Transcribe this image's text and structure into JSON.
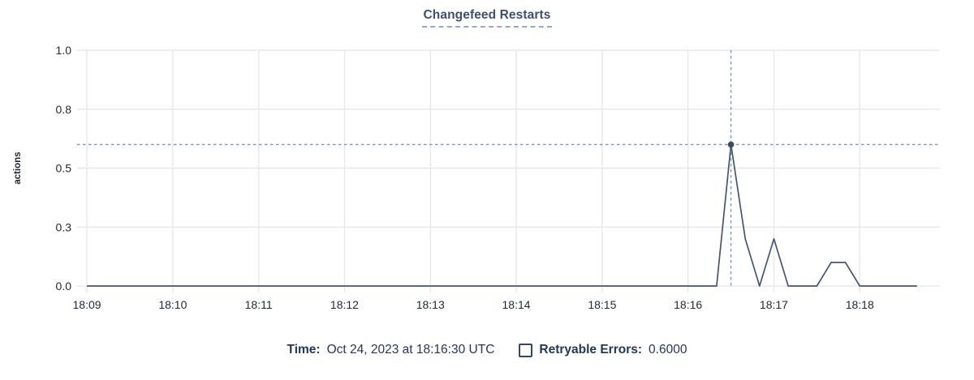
{
  "header": {
    "title": "Changefeed Restarts"
  },
  "footer": {
    "time_label": "Time:",
    "time_value": "Oct 24, 2023 at 18:16:30 UTC",
    "legend_label": "Retryable Errors:",
    "legend_value": "0.6000",
    "legend_checked": false
  },
  "chart_data": {
    "type": "line",
    "title": "Changefeed Restarts",
    "xlabel": "",
    "ylabel": "actions",
    "ylim": [
      0,
      1
    ],
    "grid": true,
    "legend_position": "bottom",
    "x_start_time": "18:09",
    "x_tick_interval_seconds": 60,
    "x_domain_seconds": [
      -4,
      596
    ],
    "x_ticks": [
      "18:09",
      "18:10",
      "18:11",
      "18:12",
      "18:13",
      "18:14",
      "18:15",
      "18:16",
      "18:17",
      "18:18"
    ],
    "y_ticks": [
      {
        "v": 0,
        "label": "0.0"
      },
      {
        "v": 0.25,
        "label": "0.3"
      },
      {
        "v": 0.5,
        "label": "0.5"
      },
      {
        "v": 0.75,
        "label": "0.8"
      },
      {
        "v": 1,
        "label": "1.0"
      }
    ],
    "series": [
      {
        "name": "Retryable Errors",
        "points": [
          [
            0,
            0
          ],
          [
            10,
            0
          ],
          [
            20,
            0
          ],
          [
            30,
            0
          ],
          [
            40,
            0
          ],
          [
            50,
            0
          ],
          [
            60,
            0
          ],
          [
            70,
            0
          ],
          [
            80,
            0
          ],
          [
            90,
            0
          ],
          [
            100,
            0
          ],
          [
            110,
            0
          ],
          [
            120,
            0
          ],
          [
            130,
            0
          ],
          [
            140,
            0
          ],
          [
            150,
            0
          ],
          [
            160,
            0
          ],
          [
            170,
            0
          ],
          [
            180,
            0
          ],
          [
            190,
            0
          ],
          [
            200,
            0
          ],
          [
            210,
            0
          ],
          [
            220,
            0
          ],
          [
            230,
            0
          ],
          [
            240,
            0
          ],
          [
            250,
            0
          ],
          [
            260,
            0
          ],
          [
            270,
            0
          ],
          [
            280,
            0
          ],
          [
            290,
            0
          ],
          [
            300,
            0
          ],
          [
            310,
            0
          ],
          [
            320,
            0
          ],
          [
            330,
            0
          ],
          [
            340,
            0
          ],
          [
            350,
            0
          ],
          [
            360,
            0
          ],
          [
            370,
            0
          ],
          [
            380,
            0
          ],
          [
            390,
            0
          ],
          [
            400,
            0
          ],
          [
            410,
            0
          ],
          [
            420,
            0
          ],
          [
            430,
            0
          ],
          [
            440,
            0
          ],
          [
            450,
            0.6
          ],
          [
            460,
            0.2
          ],
          [
            470,
            0
          ],
          [
            480,
            0.2
          ],
          [
            490,
            0
          ],
          [
            500,
            0
          ],
          [
            510,
            0
          ],
          [
            520,
            0.1
          ],
          [
            530,
            0.1
          ],
          [
            540,
            0
          ],
          [
            550,
            0
          ],
          [
            560,
            0
          ],
          [
            570,
            0
          ],
          [
            580,
            0
          ]
        ]
      }
    ],
    "crosshair": {
      "t_seconds": 450,
      "value": 0.6,
      "time_label": "18:16:30"
    },
    "colors": {
      "line": "#47566F",
      "dot": "#3A4A63",
      "grid": "#E8E8E8",
      "crosshair": "#8095A8",
      "tick_text": "#242A35",
      "axis_label_text": "#242A35",
      "title_text": "#3E5070",
      "footer_text": "#253757",
      "checkbox_border": "#33475E",
      "title_underline": "#93A8C8"
    }
  }
}
